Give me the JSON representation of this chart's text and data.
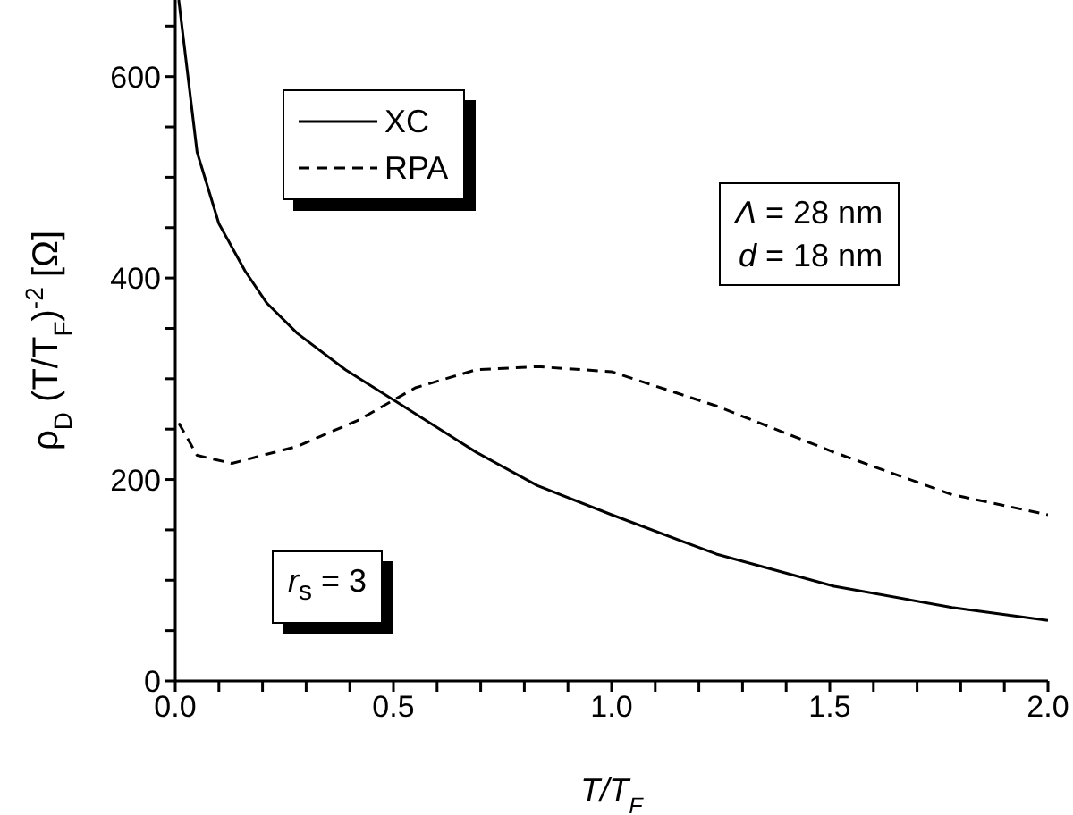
{
  "chart_data": {
    "type": "line",
    "xlabel": "T/T$_{F}$",
    "ylabel": "ρ$_{D}$ (T/T$_{F}$)$^{-2}$ [Ω]",
    "xlim": [
      0,
      2
    ],
    "ylim": [
      0,
      676
    ],
    "xticks": [
      {
        "value": 0,
        "label": "0.0"
      },
      {
        "value": 0.1,
        "label": null
      },
      {
        "value": 0.2,
        "label": null
      },
      {
        "value": 0.3,
        "label": null
      },
      {
        "value": 0.4,
        "label": null
      },
      {
        "value": 0.5,
        "label": "0.5"
      },
      {
        "value": 0.6,
        "label": null
      },
      {
        "value": 0.7,
        "label": null
      },
      {
        "value": 0.8,
        "label": null
      },
      {
        "value": 0.9,
        "label": null
      },
      {
        "value": 1,
        "label": "1.0"
      },
      {
        "value": 1.1,
        "label": null
      },
      {
        "value": 1.2,
        "label": null
      },
      {
        "value": 1.3,
        "label": null
      },
      {
        "value": 1.4,
        "label": null
      },
      {
        "value": 1.5,
        "label": "1.5"
      },
      {
        "value": 1.6,
        "label": null
      },
      {
        "value": 1.7,
        "label": null
      },
      {
        "value": 1.8,
        "label": null
      },
      {
        "value": 1.9,
        "label": null
      },
      {
        "value": 2,
        "label": "2.0"
      }
    ],
    "yticks": [
      0,
      {
        "value": 50,
        "label": null
      },
      {
        "value": 100,
        "label": null
      },
      {
        "value": 150,
        "label": null
      },
      200,
      {
        "value": 250,
        "label": null
      },
      {
        "value": 300,
        "label": null
      },
      {
        "value": 350,
        "label": null
      },
      400,
      {
        "value": 450,
        "label": null
      },
      {
        "value": 500,
        "label": null
      },
      {
        "value": 550,
        "label": null
      },
      600,
      {
        "value": 650,
        "label": null
      }
    ],
    "series": [
      {
        "name": "XC",
        "color": "#000000",
        "line_style": "solid",
        "x": [
          0.008,
          0.05,
          0.1,
          0.16,
          0.21,
          0.28,
          0.39,
          0.5,
          0.69,
          0.83,
          1.0,
          1.24,
          1.51,
          1.78,
          2.0
        ],
        "values": [
          676,
          525,
          454,
          407,
          375,
          345,
          309,
          279,
          227,
          194,
          165,
          126,
          94,
          73,
          60
        ]
      },
      {
        "name": "RPA",
        "color": "#000000",
        "line_style": "dashed",
        "x": [
          0.008,
          0.05,
          0.13,
          0.28,
          0.42,
          0.55,
          0.69,
          0.83,
          1.0,
          1.24,
          1.51,
          1.78,
          2.0
        ],
        "values": [
          256,
          224,
          216,
          233,
          259,
          291,
          309,
          312,
          307,
          273,
          227,
          185,
          165
        ]
      }
    ],
    "marker": "none",
    "grid": false,
    "legend": "top left",
    "annotations": [
      "Λ = 28 nm\nd = 18 nm",
      "r$_{s}$ = 3"
    ]
  }
}
